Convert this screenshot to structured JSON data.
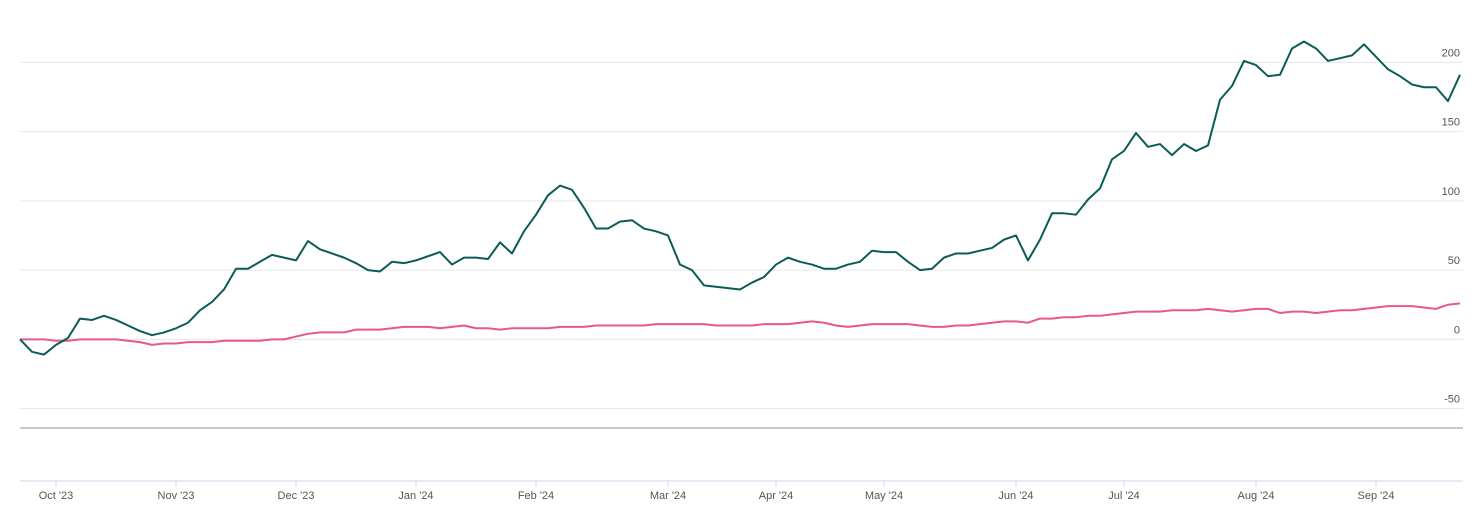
{
  "chart_data": {
    "type": "line",
    "categories": [
      null,
      null,
      null,
      "Oct '23",
      null,
      null,
      null,
      null,
      null,
      null,
      null,
      null,
      null,
      "Nov '23",
      null,
      null,
      null,
      null,
      null,
      null,
      null,
      null,
      null,
      "Dec '23",
      null,
      null,
      null,
      null,
      null,
      null,
      null,
      null,
      null,
      "Jan '24",
      null,
      null,
      null,
      null,
      null,
      null,
      null,
      null,
      null,
      "Feb '24",
      null,
      null,
      null,
      null,
      null,
      null,
      null,
      null,
      null,
      null,
      "Mar '24",
      null,
      null,
      null,
      null,
      null,
      null,
      null,
      null,
      "Apr '24",
      null,
      null,
      null,
      null,
      null,
      null,
      null,
      null,
      "May '24",
      null,
      null,
      null,
      null,
      null,
      null,
      null,
      null,
      null,
      null,
      "Jun '24",
      null,
      null,
      null,
      null,
      null,
      null,
      null,
      null,
      "Jul '24",
      null,
      null,
      null,
      null,
      null,
      null,
      null,
      null,
      null,
      null,
      "Aug '24",
      null,
      null,
      null,
      null,
      null,
      null,
      null,
      null,
      null,
      "Sep '24",
      null,
      null,
      null,
      null,
      null,
      null,
      null
    ],
    "series": [
      {
        "color": "#0b5c57",
        "values": [
          0,
          -9,
          -11,
          -4,
          1,
          15,
          14,
          17,
          14,
          10,
          6,
          3,
          5,
          8,
          12,
          21,
          27,
          36,
          51,
          51,
          56,
          61,
          59,
          57,
          71,
          65,
          62,
          59,
          55,
          50,
          49,
          56,
          55,
          57,
          60,
          63,
          54,
          59,
          59,
          58,
          70,
          62,
          78,
          90,
          104,
          111,
          108,
          95,
          80,
          80,
          85,
          86,
          80,
          78,
          75,
          54,
          50,
          39,
          38,
          37,
          36,
          41,
          45,
          54,
          59,
          56,
          54,
          51,
          51,
          54,
          56,
          64,
          63,
          63,
          56,
          50,
          51,
          59,
          62,
          62,
          64,
          66,
          72,
          75,
          57,
          72,
          91,
          91,
          90,
          101,
          109,
          130,
          136,
          149,
          139,
          141,
          133,
          141,
          136,
          140,
          173,
          183,
          201,
          198,
          190,
          191,
          210,
          215,
          210,
          201,
          203,
          205,
          213,
          204,
          195,
          190,
          184,
          182,
          182,
          172,
          191
        ]
      },
      {
        "color": "#e8578a",
        "values": [
          0,
          0,
          0,
          -1,
          -1,
          0,
          0,
          0,
          0,
          -1,
          -2,
          -4,
          -3,
          -3,
          -2,
          -2,
          -2,
          -1,
          -1,
          -1,
          -1,
          0,
          0,
          2,
          4,
          5,
          5,
          5,
          7,
          7,
          7,
          8,
          9,
          9,
          9,
          8,
          9,
          10,
          8,
          8,
          7,
          8,
          8,
          8,
          8,
          9,
          9,
          9,
          10,
          10,
          10,
          10,
          10,
          11,
          11,
          11,
          11,
          11,
          10,
          10,
          10,
          10,
          11,
          11,
          11,
          12,
          13,
          12,
          10,
          9,
          10,
          11,
          11,
          11,
          11,
          10,
          9,
          9,
          10,
          10,
          11,
          12,
          13,
          13,
          12,
          15,
          15,
          16,
          16,
          17,
          17,
          18,
          19,
          20,
          20,
          20,
          21,
          21,
          21,
          22,
          21,
          20,
          21,
          22,
          22,
          19,
          20,
          20,
          19,
          20,
          21,
          21,
          22,
          23,
          24,
          24,
          24,
          23,
          22,
          25,
          26
        ]
      }
    ],
    "ylim": [
      -64,
      245
    ],
    "yticks": [
      -50,
      0,
      50,
      100,
      150,
      200
    ],
    "grid": true
  }
}
